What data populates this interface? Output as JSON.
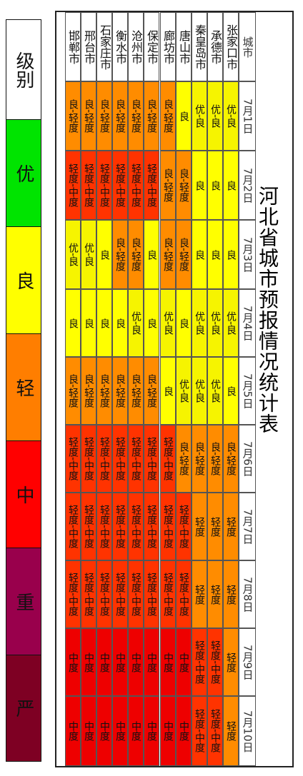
{
  "title": "河北省城市预报情况统计表",
  "corner_label": "城市",
  "dates": [
    "7月1日",
    "7月2日",
    "7月3日",
    "7月4日",
    "7月5日",
    "7月6日",
    "7月7日",
    "7月8日",
    "7月9日",
    "7月10日"
  ],
  "cities": [
    "张家口市",
    "承德市",
    "秦皇岛市",
    "唐山市",
    "廊坊市",
    "保定市",
    "沧州市",
    "衡水市",
    "石家庄市",
    "邢台市",
    "邯郸市"
  ],
  "grid": [
    [
      "优-良",
      "良",
      "良",
      "优-良",
      "良",
      "良-轻度",
      "轻度",
      "轻度",
      "轻度",
      "轻度"
    ],
    [
      "优-良",
      "良",
      "良",
      "优-良",
      "优-良",
      "良-轻度",
      "轻度",
      "轻度",
      "轻度-中度",
      "轻度-中度"
    ],
    [
      "优-良",
      "良",
      "良",
      "优-良",
      "优-良",
      "良-轻度",
      "轻度",
      "轻度",
      "轻度-中度",
      "轻度-中度"
    ],
    [
      "良",
      "良-轻度",
      "良-轻度",
      "良",
      "优-良",
      "良-轻度",
      "轻度-中度",
      "轻度-中度",
      "中度",
      "中度"
    ],
    [
      "良-轻度",
      "良-轻度",
      "良-轻度",
      "优-良",
      "良",
      "轻度-中度",
      "轻度-中度",
      "轻度-中度",
      "中度",
      "中度"
    ],
    [
      "良-轻度",
      "轻度-中度",
      "良",
      "良",
      "良-轻度",
      "轻度-中度",
      "轻度-中度",
      "轻度-中度",
      "中度",
      "中度"
    ],
    [
      "良-轻度",
      "轻度-中度",
      "良-轻度",
      "优-良",
      "良-轻度",
      "轻度-中度",
      "轻度-中度",
      "轻度-中度",
      "中度",
      "中度"
    ],
    [
      "良-轻度",
      "轻度-中度",
      "良-轻度",
      "良",
      "良-轻度",
      "轻度-中度",
      "轻度-中度",
      "轻度-中度",
      "中度",
      "中度"
    ],
    [
      "良-轻度",
      "轻度-中度",
      "良",
      "良",
      "良-轻度",
      "轻度-中度",
      "轻度-中度",
      "轻度-中度",
      "中度",
      "中度"
    ],
    [
      "良-轻度",
      "轻度-中度",
      "优-良",
      "良",
      "良-轻度",
      "轻度-中度",
      "轻度-中度",
      "轻度-中度",
      "中度",
      "中度"
    ],
    [
      "良-轻度",
      "轻度-中度",
      "优-良",
      "良",
      "良-轻度",
      "轻度-中度",
      "轻度-中度",
      "轻度-中度",
      "中度",
      "中度"
    ]
  ],
  "level_colors": {
    "优-良": "#f6f400",
    "良": "#ffff00",
    "良-轻度": "#ff8c00",
    "轻度": "#ff8c00",
    "轻度-中度": "#ff3300",
    "中度": "#ee0000"
  },
  "legend": [
    {
      "label": "级别",
      "color": "#ffffff"
    },
    {
      "label": "优",
      "color": "#00e400"
    },
    {
      "label": "良",
      "color": "#ffff00"
    },
    {
      "label": "轻",
      "color": "#ff7e00"
    },
    {
      "label": "中",
      "color": "#ff0000"
    },
    {
      "label": "重",
      "color": "#99004c"
    },
    {
      "label": "严",
      "color": "#7e0023"
    }
  ]
}
